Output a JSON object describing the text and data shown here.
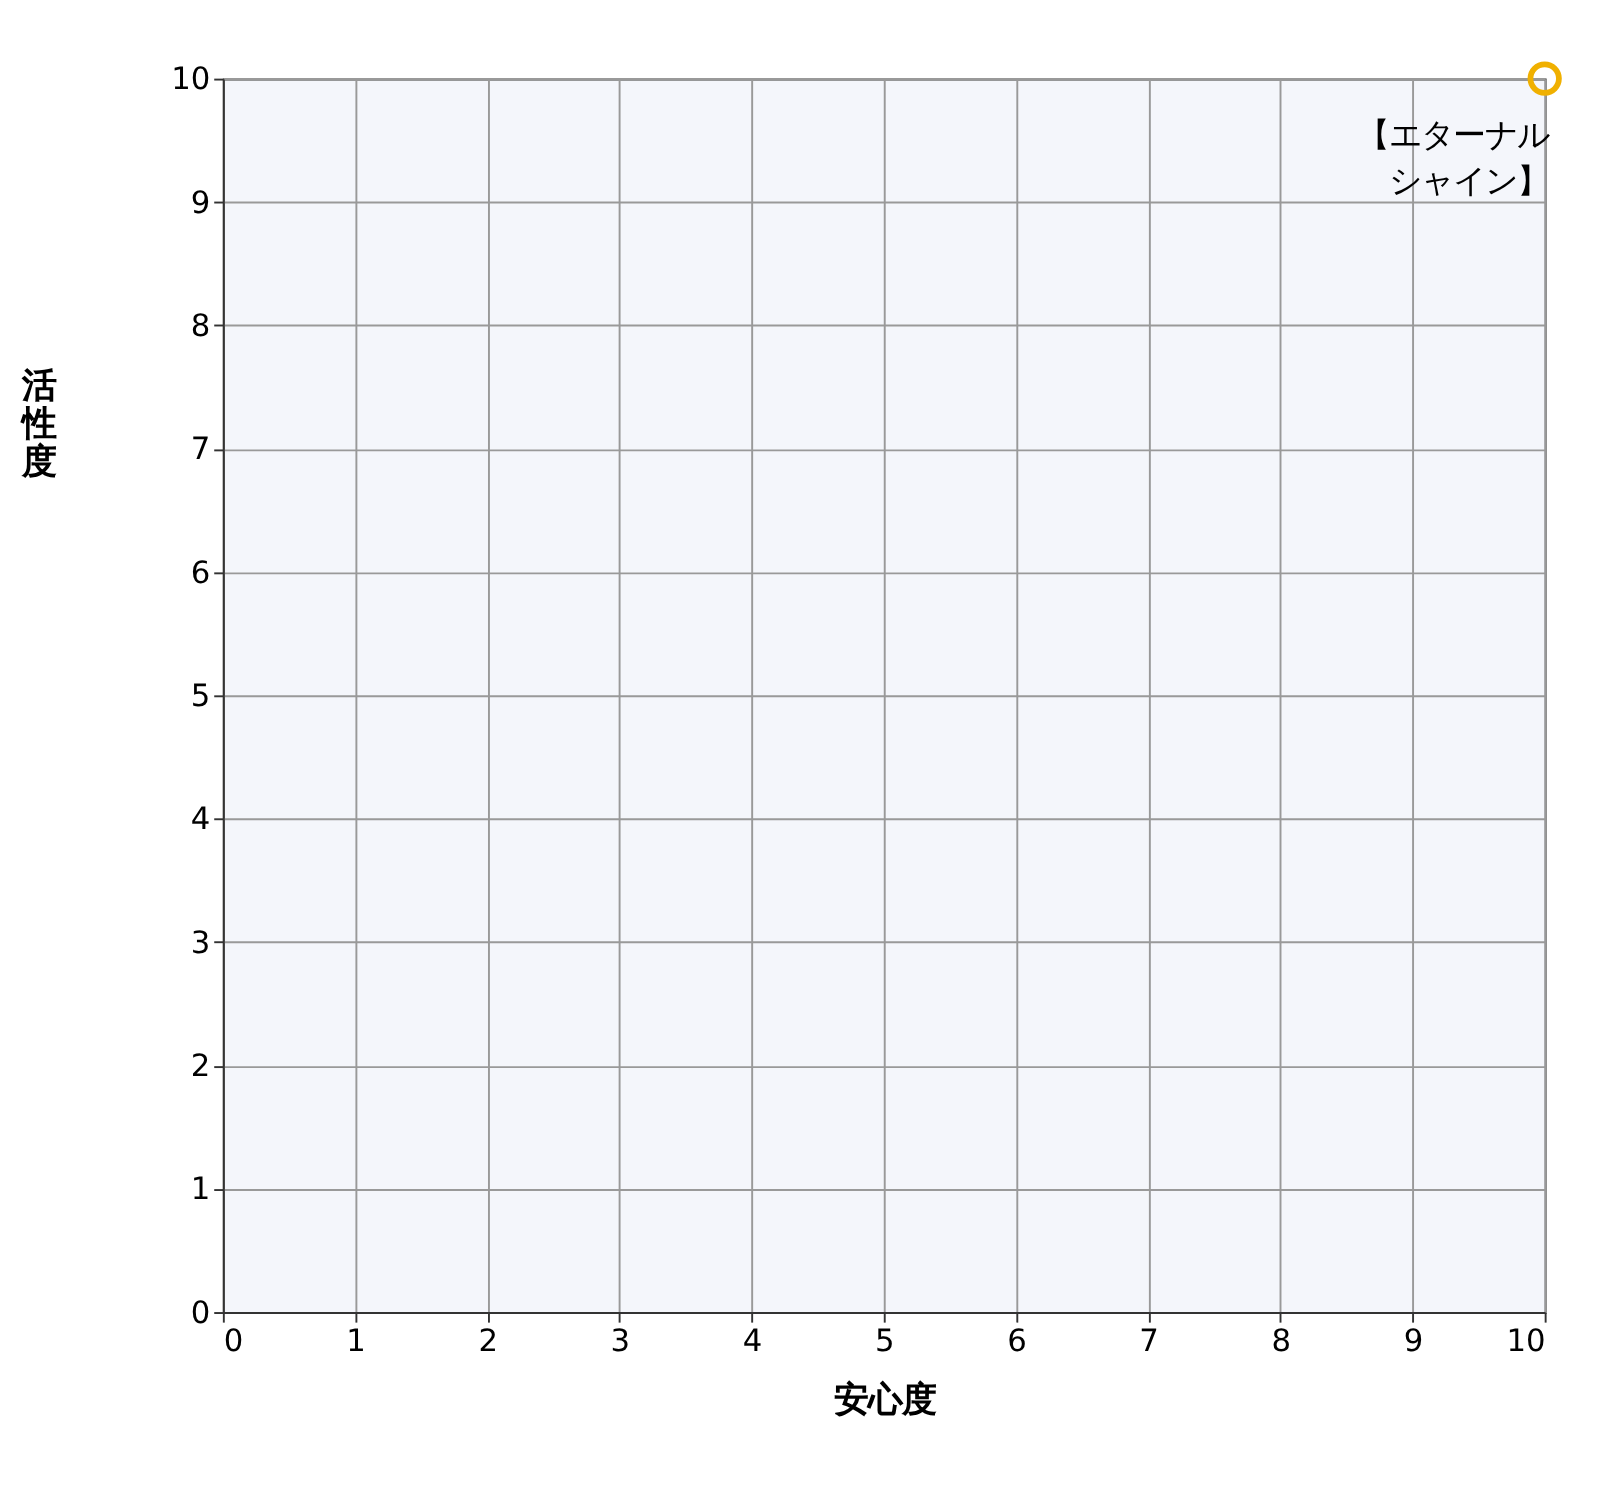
{
  "chart_data": {
    "type": "scatter",
    "xlabel": "安心度",
    "ylabel": "活性度",
    "x": [
      10
    ],
    "series": [
      {
        "color": "#f0b000",
        "values": [
          10
        ]
      }
    ],
    "xlim": [
      0,
      10
    ],
    "ylim": [
      0,
      10
    ],
    "xticks": [
      0,
      1,
      2,
      3,
      4,
      5,
      6,
      7,
      8,
      9,
      10
    ],
    "yticks": [
      0,
      1,
      2,
      3,
      4,
      5,
      6,
      7,
      8,
      9,
      10
    ],
    "grid": true,
    "marker": "circle",
    "annotations": [
      {
        "text": "【エターナルシャイン】",
        "x": 10,
        "y": 10
      }
    ]
  }
}
